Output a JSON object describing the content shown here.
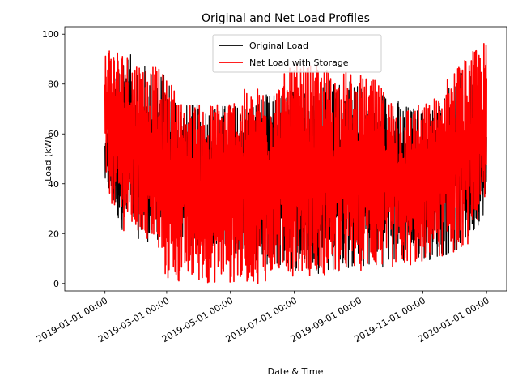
{
  "chart_data": {
    "type": "line",
    "title": "Original and Net Load Profiles",
    "xlabel": "Date & Time",
    "ylabel": "Load (kW)",
    "xlim": [
      "2019-01-01",
      "2020-01-01"
    ],
    "ylim": [
      -3,
      103
    ],
    "xticks": [
      {
        "value": "2019-01-01",
        "label": "2019-01-01 00:00"
      },
      {
        "value": "2019-03-01",
        "label": "2019-03-01 00:00"
      },
      {
        "value": "2019-05-01",
        "label": "2019-05-01 00:00"
      },
      {
        "value": "2019-07-01",
        "label": "2019-07-01 00:00"
      },
      {
        "value": "2019-09-01",
        "label": "2019-09-01 00:00"
      },
      {
        "value": "2019-11-01",
        "label": "2019-11-01 00:00"
      },
      {
        "value": "2020-01-01",
        "label": "2020-01-01 00:00"
      }
    ],
    "yticks": [
      0,
      20,
      40,
      60,
      80,
      100
    ],
    "grid": false,
    "legend_position": "top-center",
    "series": [
      {
        "name": "Original Load",
        "color": "#000000",
        "x": [
          "2019-01-01",
          "2019-01-15",
          "2019-02-01",
          "2019-02-15",
          "2019-03-01",
          "2019-03-15",
          "2019-04-01",
          "2019-04-15",
          "2019-05-01",
          "2019-05-15",
          "2019-06-01",
          "2019-06-15",
          "2019-07-01",
          "2019-07-15",
          "2019-08-01",
          "2019-08-15",
          "2019-09-01",
          "2019-09-15",
          "2019-10-01",
          "2019-10-15",
          "2019-11-01",
          "2019-11-15",
          "2019-12-01",
          "2019-12-15",
          "2020-01-01"
        ],
        "min": [
          40,
          22,
          18,
          16,
          18,
          16,
          14,
          14,
          12,
          10,
          8,
          6,
          5,
          4,
          4,
          4,
          6,
          6,
          7,
          8,
          9,
          10,
          12,
          16,
          30
        ],
        "max": [
          58,
          95,
          90,
          86,
          84,
          72,
          72,
          72,
          72,
          72,
          76,
          76,
          80,
          80,
          82,
          82,
          80,
          80,
          76,
          72,
          70,
          72,
          84,
          86,
          62
        ]
      },
      {
        "name": "Net Load with Storage",
        "color": "#ff0000",
        "x": [
          "2019-01-01",
          "2019-01-15",
          "2019-02-01",
          "2019-02-15",
          "2019-03-01",
          "2019-03-15",
          "2019-04-01",
          "2019-04-15",
          "2019-05-01",
          "2019-05-15",
          "2019-06-01",
          "2019-06-15",
          "2019-07-01",
          "2019-07-15",
          "2019-08-01",
          "2019-08-15",
          "2019-09-01",
          "2019-09-15",
          "2019-10-01",
          "2019-10-15",
          "2019-11-01",
          "2019-11-15",
          "2019-12-01",
          "2019-12-15",
          "2020-01-01"
        ],
        "min": [
          40,
          22,
          18,
          16,
          0,
          0,
          0,
          0,
          0,
          0,
          0,
          3,
          3,
          3,
          3,
          3,
          5,
          5,
          6,
          6,
          8,
          10,
          12,
          16,
          30
        ],
        "max": [
          98,
          95,
          91,
          88,
          84,
          74,
          72,
          73,
          76,
          78,
          80,
          82,
          88,
          88,
          87,
          86,
          84,
          82,
          76,
          72,
          72,
          76,
          88,
          92,
          98
        ]
      }
    ]
  }
}
